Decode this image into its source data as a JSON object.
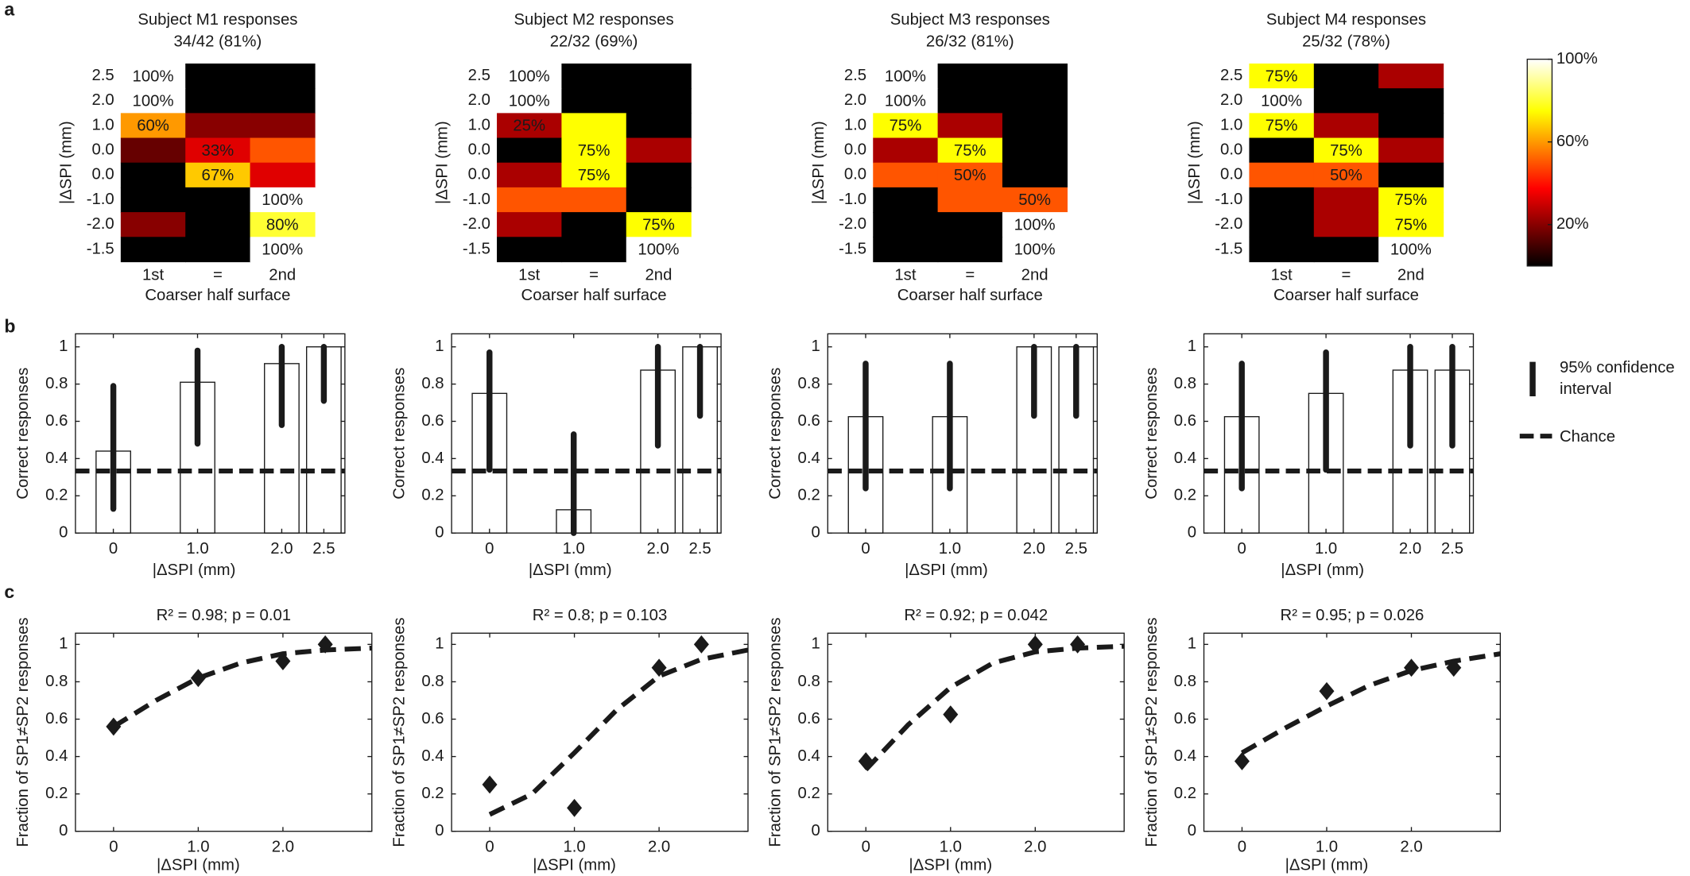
{
  "panel_labels": [
    "a",
    "b",
    "c"
  ],
  "chart_data": [
    {
      "type": "heatmap",
      "title": "Subject M1 responses",
      "subtitle": "34/42 (81%)",
      "colormap": "hot",
      "categories": [
        "1st",
        "=",
        "2nd"
      ],
      "rows": [
        "2.5",
        "2.0",
        "1.0",
        "0.0",
        "0.0",
        "-1.0",
        "-2.0",
        "-1.5"
      ],
      "xlabel": "Coarser half surface",
      "ylabel": "|ΔSPI (mm)",
      "values": [
        [
          100,
          0,
          0
        ],
        [
          100,
          0,
          0
        ],
        [
          60,
          20,
          20
        ],
        [
          15,
          33,
          50
        ],
        [
          0,
          67,
          33
        ],
        [
          0,
          0,
          100
        ],
        [
          20,
          0,
          80
        ],
        [
          0,
          0,
          100
        ]
      ],
      "value_labels": [
        [
          "100%",
          null,
          null
        ],
        [
          "100%",
          null,
          null
        ],
        [
          "60%",
          null,
          null
        ],
        [
          null,
          "33%",
          null
        ],
        [
          null,
          "67%",
          null
        ],
        [
          null,
          null,
          "100%"
        ],
        [
          null,
          null,
          "80%"
        ],
        [
          null,
          null,
          "100%"
        ]
      ]
    },
    {
      "type": "heatmap",
      "title": "Subject M2 responses",
      "subtitle": "22/32 (69%)",
      "colormap": "hot",
      "categories": [
        "1st",
        "=",
        "2nd"
      ],
      "rows": [
        "2.5",
        "2.0",
        "1.0",
        "0.0",
        "0.0",
        "-1.0",
        "-2.0",
        "-1.5"
      ],
      "xlabel": "Coarser half surface",
      "ylabel": "|ΔSPI (mm)",
      "values": [
        [
          100,
          0,
          0
        ],
        [
          100,
          0,
          0
        ],
        [
          25,
          75,
          0
        ],
        [
          0,
          75,
          25
        ],
        [
          25,
          75,
          0
        ],
        [
          50,
          50,
          0
        ],
        [
          25,
          0,
          75
        ],
        [
          0,
          0,
          100
        ]
      ],
      "value_labels": [
        [
          "100%",
          null,
          null
        ],
        [
          "100%",
          null,
          null
        ],
        [
          "25%",
          null,
          null
        ],
        [
          null,
          "75%",
          null
        ],
        [
          null,
          "75%",
          null
        ],
        [
          null,
          null,
          null
        ],
        [
          null,
          null,
          "75%"
        ],
        [
          null,
          null,
          "100%"
        ]
      ]
    },
    {
      "type": "heatmap",
      "title": "Subject M3 responses",
      "subtitle": "26/32 (81%)",
      "colormap": "hot",
      "categories": [
        "1st",
        "=",
        "2nd"
      ],
      "rows": [
        "2.5",
        "2.0",
        "1.0",
        "0.0",
        "0.0",
        "-1.0",
        "-2.0",
        "-1.5"
      ],
      "xlabel": "Coarser half surface",
      "ylabel": "|ΔSPI (mm)",
      "values": [
        [
          100,
          0,
          0
        ],
        [
          100,
          0,
          0
        ],
        [
          75,
          25,
          0
        ],
        [
          25,
          75,
          0
        ],
        [
          50,
          50,
          0
        ],
        [
          0,
          50,
          50
        ],
        [
          0,
          0,
          100
        ],
        [
          0,
          0,
          100
        ]
      ],
      "value_labels": [
        [
          "100%",
          null,
          null
        ],
        [
          "100%",
          null,
          null
        ],
        [
          "75%",
          null,
          null
        ],
        [
          null,
          "75%",
          null
        ],
        [
          null,
          "50%",
          null
        ],
        [
          null,
          null,
          "50%"
        ],
        [
          null,
          null,
          "100%"
        ],
        [
          null,
          null,
          "100%"
        ]
      ]
    },
    {
      "type": "heatmap",
      "title": "Subject M4 responses",
      "subtitle": "25/32 (78%)",
      "colormap": "hot",
      "categories": [
        "1st",
        "=",
        "2nd"
      ],
      "rows": [
        "2.5",
        "2.0",
        "1.0",
        "0.0",
        "0.0",
        "-1.0",
        "-2.0",
        "-1.5"
      ],
      "xlabel": "Coarser half surface",
      "ylabel": "|ΔSPI (mm)",
      "values": [
        [
          75,
          0,
          25
        ],
        [
          100,
          0,
          0
        ],
        [
          75,
          25,
          0
        ],
        [
          0,
          75,
          25
        ],
        [
          50,
          50,
          0
        ],
        [
          0,
          25,
          75
        ],
        [
          0,
          25,
          75
        ],
        [
          0,
          0,
          100
        ]
      ],
      "value_labels": [
        [
          "75%",
          null,
          null
        ],
        [
          "100%",
          null,
          null
        ],
        [
          "75%",
          null,
          null
        ],
        [
          null,
          "75%",
          null
        ],
        [
          null,
          "50%",
          null
        ],
        [
          null,
          null,
          "75%"
        ],
        [
          null,
          null,
          "75%"
        ],
        [
          null,
          null,
          "100%"
        ]
      ]
    },
    {
      "type": "colorbar",
      "ylim": [
        0,
        100
      ],
      "yticks": [
        {
          "value": 20,
          "label": "20%"
        },
        {
          "value": 60,
          "label": "60%"
        },
        {
          "value": 100,
          "label": "100%"
        }
      ]
    },
    {
      "type": "bar",
      "xlabel": "|ΔSPI (mm)",
      "ylabel": "Correct responses",
      "color": "#ffffff",
      "ci_color": "#1a1a1a",
      "x": [
        0,
        1,
        2,
        2.5
      ],
      "values": [
        0.44,
        0.81,
        0.91,
        1.0
      ],
      "ci": [
        [
          0.13,
          0.79
        ],
        [
          0.48,
          0.98
        ],
        [
          0.58,
          1.0
        ],
        [
          0.71,
          1.0
        ]
      ],
      "chance": 0.333,
      "xlim": [
        -0.45,
        2.75
      ],
      "ylim": [
        0,
        1.07
      ],
      "xticks": [
        0,
        {
          "value": 1,
          "label": "1.0"
        },
        {
          "value": 2,
          "label": "2.0"
        },
        2.5
      ],
      "yticks": [
        0,
        0.2,
        0.4,
        0.6,
        0.8,
        1
      ]
    },
    {
      "type": "bar",
      "xlabel": "|ΔSPI (mm)",
      "ylabel": "Correct responses",
      "color": "#ffffff",
      "ci_color": "#1a1a1a",
      "x": [
        0,
        1,
        2,
        2.5
      ],
      "values": [
        0.75,
        0.125,
        0.875,
        1.0
      ],
      "ci": [
        [
          0.34,
          0.97
        ],
        [
          0,
          0.53
        ],
        [
          0.47,
          1.0
        ],
        [
          0.63,
          1.0
        ]
      ],
      "chance": 0.333,
      "xlim": [
        -0.45,
        2.75
      ],
      "ylim": [
        0,
        1.07
      ],
      "xticks": [
        0,
        {
          "value": 1,
          "label": "1.0"
        },
        {
          "value": 2,
          "label": "2.0"
        },
        2.5
      ],
      "yticks": [
        0,
        0.2,
        0.4,
        0.6,
        0.8,
        1
      ]
    },
    {
      "type": "bar",
      "xlabel": "|ΔSPI (mm)",
      "ylabel": "Correct responses",
      "color": "#ffffff",
      "ci_color": "#1a1a1a",
      "x": [
        0,
        1,
        2,
        2.5
      ],
      "values": [
        0.625,
        0.625,
        1.0,
        1.0
      ],
      "ci": [
        [
          0.24,
          0.91
        ],
        [
          0.24,
          0.91
        ],
        [
          0.63,
          1.0
        ],
        [
          0.63,
          1.0
        ]
      ],
      "chance": 0.333,
      "xlim": [
        -0.45,
        2.75
      ],
      "ylim": [
        0,
        1.07
      ],
      "xticks": [
        0,
        {
          "value": 1,
          "label": "1.0"
        },
        {
          "value": 2,
          "label": "2.0"
        },
        2.5
      ],
      "yticks": [
        0,
        0.2,
        0.4,
        0.6,
        0.8,
        1
      ]
    },
    {
      "type": "bar",
      "xlabel": "|ΔSPI (mm)",
      "ylabel": "Correct responses",
      "color": "#ffffff",
      "ci_color": "#1a1a1a",
      "x": [
        0,
        1,
        2,
        2.5
      ],
      "values": [
        0.625,
        0.75,
        0.875,
        0.875
      ],
      "ci": [
        [
          0.24,
          0.91
        ],
        [
          0.34,
          0.97
        ],
        [
          0.47,
          1.0
        ],
        [
          0.47,
          1.0
        ]
      ],
      "chance": 0.333,
      "xlim": [
        -0.45,
        2.75
      ],
      "ylim": [
        0,
        1.07
      ],
      "xticks": [
        0,
        {
          "value": 1,
          "label": "1.0"
        },
        {
          "value": 2,
          "label": "2.0"
        },
        2.5
      ],
      "yticks": [
        0,
        0.2,
        0.4,
        0.6,
        0.8,
        1
      ]
    },
    {
      "type": "legend",
      "items": [
        "95% confidence interval",
        "Chance"
      ]
    },
    {
      "type": "scatter",
      "title": "R² = 0.98; p = 0.01",
      "xlabel": "|ΔSPI (mm)",
      "ylabel": "Fraction of SP1≠SP2 responses",
      "color": "#1a1a1a",
      "x": [
        0,
        1,
        2,
        2.5
      ],
      "y": [
        0.56,
        0.82,
        0.91,
        1.0
      ],
      "fit": {
        "x": [
          0,
          0.5,
          1,
          1.5,
          2,
          2.5,
          3.05
        ],
        "y": [
          0.56,
          0.7,
          0.82,
          0.9,
          0.95,
          0.97,
          0.98
        ]
      },
      "xlim": [
        -0.45,
        3.05
      ],
      "ylim": [
        0,
        1.06
      ],
      "xticks": [
        0,
        {
          "value": 1,
          "label": "1.0"
        },
        {
          "value": 2,
          "label": "2.0"
        }
      ],
      "yticks": [
        0,
        0.2,
        0.4,
        0.6,
        0.8,
        1
      ]
    },
    {
      "type": "scatter",
      "title": "R² = 0.8; p = 0.103",
      "xlabel": "|ΔSPI (mm)",
      "ylabel": "Fraction of SP1≠SP2 responses",
      "color": "#1a1a1a",
      "x": [
        0,
        1,
        2,
        2.5
      ],
      "y": [
        0.25,
        0.125,
        0.875,
        1.0
      ],
      "fit": {
        "x": [
          0,
          0.5,
          1,
          1.5,
          2,
          2.5,
          3.05
        ],
        "y": [
          0.09,
          0.2,
          0.42,
          0.65,
          0.83,
          0.92,
          0.97
        ]
      },
      "xlim": [
        -0.45,
        3.05
      ],
      "ylim": [
        0,
        1.06
      ],
      "xticks": [
        0,
        {
          "value": 1,
          "label": "1.0"
        },
        {
          "value": 2,
          "label": "2.0"
        }
      ],
      "yticks": [
        0,
        0.2,
        0.4,
        0.6,
        0.8,
        1
      ]
    },
    {
      "type": "scatter",
      "title": "R² = 0.92; p = 0.042",
      "xlabel": "|ΔSPI (mm)",
      "ylabel": "Fraction of SP1≠SP2 responses",
      "color": "#1a1a1a",
      "x": [
        0,
        1,
        2,
        2.5
      ],
      "y": [
        0.375,
        0.625,
        1.0,
        1.0
      ],
      "fit": {
        "x": [
          0,
          0.5,
          1,
          1.5,
          2,
          2.5,
          3.05
        ],
        "y": [
          0.33,
          0.57,
          0.77,
          0.9,
          0.96,
          0.98,
          0.99
        ]
      },
      "xlim": [
        -0.45,
        3.05
      ],
      "ylim": [
        0,
        1.06
      ],
      "xticks": [
        0,
        {
          "value": 1,
          "label": "1.0"
        },
        {
          "value": 2,
          "label": "2.0"
        }
      ],
      "yticks": [
        0,
        0.2,
        0.4,
        0.6,
        0.8,
        1
      ]
    },
    {
      "type": "scatter",
      "title": "R² = 0.95; p = 0.026",
      "xlabel": "|ΔSPI (mm)",
      "ylabel": "Fraction of SP1≠SP2 responses",
      "color": "#1a1a1a",
      "x": [
        0,
        1,
        2,
        2.5
      ],
      "y": [
        0.375,
        0.75,
        0.875,
        0.875
      ],
      "fit": {
        "x": [
          0,
          0.5,
          1,
          1.5,
          2,
          2.5,
          3.05
        ],
        "y": [
          0.42,
          0.55,
          0.67,
          0.78,
          0.86,
          0.91,
          0.95
        ]
      },
      "xlim": [
        -0.45,
        3.05
      ],
      "ylim": [
        0,
        1.06
      ],
      "xticks": [
        0,
        {
          "value": 1,
          "label": "1.0"
        },
        {
          "value": 2,
          "label": "2.0"
        }
      ],
      "yticks": [
        0,
        0.2,
        0.4,
        0.6,
        0.8,
        1
      ]
    }
  ]
}
